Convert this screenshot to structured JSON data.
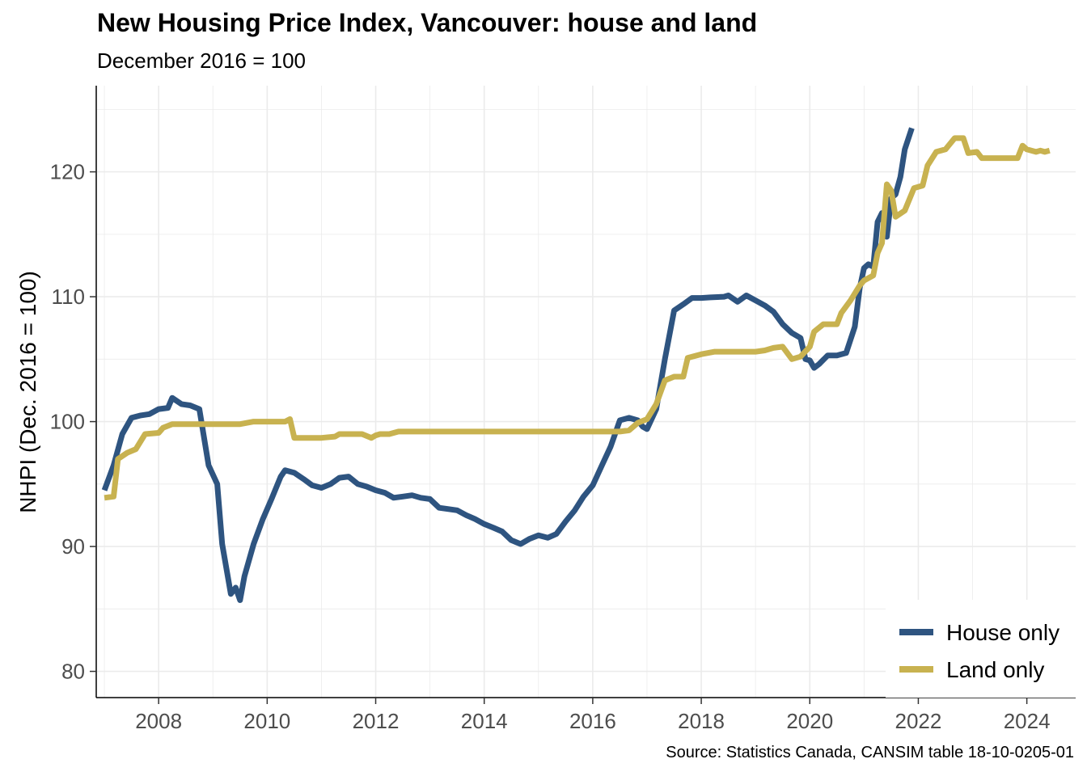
{
  "chart_data": {
    "type": "line",
    "title": "New Housing Price Index, Vancouver: house and land",
    "subtitle": "December 2016 = 100",
    "ylabel": "NHPI (Dec. 2016 = 100)",
    "xlabel": "",
    "caption": "Source: Statistics Canada, CANSIM table 18-10-0205-01",
    "x_ticks": [
      2008,
      2010,
      2012,
      2014,
      2016,
      2018,
      2020,
      2022,
      2024
    ],
    "y_ticks": [
      80,
      90,
      100,
      110,
      120
    ],
    "xlim": [
      2006.85,
      2024.9
    ],
    "ylim": [
      77.9,
      126.9
    ],
    "grid": true,
    "legend_position": "bottom-right",
    "series": [
      {
        "name": "House only",
        "color": "#2E5480",
        "points": [
          [
            2007.0,
            94.5
          ],
          [
            2007.17,
            96.5
          ],
          [
            2007.33,
            99.0
          ],
          [
            2007.5,
            100.3
          ],
          [
            2007.67,
            100.5
          ],
          [
            2007.83,
            100.6
          ],
          [
            2008.0,
            101.0
          ],
          [
            2008.17,
            101.1
          ],
          [
            2008.25,
            101.9
          ],
          [
            2008.42,
            101.4
          ],
          [
            2008.58,
            101.3
          ],
          [
            2008.75,
            101.0
          ],
          [
            2008.92,
            96.5
          ],
          [
            2009.08,
            95.0
          ],
          [
            2009.17,
            90.2
          ],
          [
            2009.33,
            86.2
          ],
          [
            2009.42,
            86.7
          ],
          [
            2009.5,
            85.7
          ],
          [
            2009.58,
            87.6
          ],
          [
            2009.75,
            90.2
          ],
          [
            2009.92,
            92.2
          ],
          [
            2010.08,
            93.8
          ],
          [
            2010.25,
            95.6
          ],
          [
            2010.33,
            96.1
          ],
          [
            2010.5,
            95.9
          ],
          [
            2010.67,
            95.4
          ],
          [
            2010.83,
            94.9
          ],
          [
            2011.0,
            94.7
          ],
          [
            2011.17,
            95.0
          ],
          [
            2011.33,
            95.5
          ],
          [
            2011.5,
            95.6
          ],
          [
            2011.67,
            95.0
          ],
          [
            2011.83,
            94.8
          ],
          [
            2012.0,
            94.5
          ],
          [
            2012.17,
            94.3
          ],
          [
            2012.33,
            93.9
          ],
          [
            2012.5,
            94.0
          ],
          [
            2012.67,
            94.1
          ],
          [
            2012.83,
            93.9
          ],
          [
            2013.0,
            93.8
          ],
          [
            2013.17,
            93.1
          ],
          [
            2013.33,
            93.0
          ],
          [
            2013.5,
            92.9
          ],
          [
            2013.67,
            92.5
          ],
          [
            2013.83,
            92.2
          ],
          [
            2014.0,
            91.8
          ],
          [
            2014.17,
            91.5
          ],
          [
            2014.33,
            91.2
          ],
          [
            2014.5,
            90.5
          ],
          [
            2014.67,
            90.2
          ],
          [
            2014.83,
            90.6
          ],
          [
            2015.0,
            90.9
          ],
          [
            2015.17,
            90.7
          ],
          [
            2015.33,
            91.0
          ],
          [
            2015.5,
            92.0
          ],
          [
            2015.67,
            92.9
          ],
          [
            2015.83,
            94.0
          ],
          [
            2016.0,
            94.9
          ],
          [
            2016.17,
            96.5
          ],
          [
            2016.33,
            98.0
          ],
          [
            2016.5,
            100.1
          ],
          [
            2016.67,
            100.3
          ],
          [
            2016.83,
            100.1
          ],
          [
            2016.92,
            99.6
          ],
          [
            2017.0,
            99.4
          ],
          [
            2017.17,
            101.0
          ],
          [
            2017.33,
            105.0
          ],
          [
            2017.5,
            108.9
          ],
          [
            2017.67,
            109.4
          ],
          [
            2017.83,
            109.9
          ],
          [
            2018.0,
            109.9
          ],
          [
            2018.17,
            109.95
          ],
          [
            2018.42,
            110.0
          ],
          [
            2018.5,
            110.1
          ],
          [
            2018.67,
            109.6
          ],
          [
            2018.83,
            110.1
          ],
          [
            2019.0,
            109.7
          ],
          [
            2019.17,
            109.3
          ],
          [
            2019.33,
            108.8
          ],
          [
            2019.5,
            107.8
          ],
          [
            2019.67,
            107.1
          ],
          [
            2019.83,
            106.7
          ],
          [
            2019.92,
            105.0
          ],
          [
            2020.0,
            104.9
          ],
          [
            2020.08,
            104.3
          ],
          [
            2020.17,
            104.6
          ],
          [
            2020.33,
            105.3
          ],
          [
            2020.5,
            105.3
          ],
          [
            2020.67,
            105.5
          ],
          [
            2020.83,
            107.6
          ],
          [
            2020.92,
            110.7
          ],
          [
            2021.0,
            112.3
          ],
          [
            2021.08,
            112.6
          ],
          [
            2021.17,
            112.4
          ],
          [
            2021.25,
            116.0
          ],
          [
            2021.33,
            116.7
          ],
          [
            2021.42,
            114.8
          ],
          [
            2021.5,
            117.9
          ],
          [
            2021.58,
            118.2
          ],
          [
            2021.67,
            119.6
          ],
          [
            2021.75,
            121.8
          ],
          [
            2021.88,
            123.5
          ]
        ]
      },
      {
        "name": "Land only",
        "color": "#C8B250",
        "points": [
          [
            2007.0,
            93.9
          ],
          [
            2007.17,
            94.0
          ],
          [
            2007.25,
            97.0
          ],
          [
            2007.42,
            97.5
          ],
          [
            2007.58,
            97.8
          ],
          [
            2007.75,
            99.0
          ],
          [
            2008.0,
            99.1
          ],
          [
            2008.08,
            99.5
          ],
          [
            2008.25,
            99.8
          ],
          [
            2008.5,
            99.8
          ],
          [
            2009.0,
            99.8
          ],
          [
            2009.5,
            99.8
          ],
          [
            2009.75,
            100.0
          ],
          [
            2010.0,
            100.0
          ],
          [
            2010.33,
            100.0
          ],
          [
            2010.42,
            100.2
          ],
          [
            2010.5,
            98.7
          ],
          [
            2010.75,
            98.7
          ],
          [
            2011.0,
            98.7
          ],
          [
            2011.25,
            98.8
          ],
          [
            2011.33,
            99.0
          ],
          [
            2011.5,
            99.0
          ],
          [
            2011.75,
            99.0
          ],
          [
            2011.92,
            98.7
          ],
          [
            2012.0,
            98.9
          ],
          [
            2012.08,
            99.0
          ],
          [
            2012.25,
            99.0
          ],
          [
            2012.42,
            99.2
          ],
          [
            2013.0,
            99.2
          ],
          [
            2014.0,
            99.2
          ],
          [
            2015.0,
            99.2
          ],
          [
            2016.0,
            99.2
          ],
          [
            2016.5,
            99.2
          ],
          [
            2016.67,
            99.3
          ],
          [
            2016.83,
            99.9
          ],
          [
            2017.0,
            100.2
          ],
          [
            2017.17,
            101.4
          ],
          [
            2017.33,
            103.3
          ],
          [
            2017.5,
            103.6
          ],
          [
            2017.67,
            103.6
          ],
          [
            2017.75,
            105.1
          ],
          [
            2018.0,
            105.4
          ],
          [
            2018.25,
            105.6
          ],
          [
            2018.5,
            105.6
          ],
          [
            2019.0,
            105.6
          ],
          [
            2019.17,
            105.7
          ],
          [
            2019.33,
            105.9
          ],
          [
            2019.5,
            106.0
          ],
          [
            2019.67,
            105.0
          ],
          [
            2019.83,
            105.2
          ],
          [
            2020.0,
            106.0
          ],
          [
            2020.08,
            107.2
          ],
          [
            2020.25,
            107.8
          ],
          [
            2020.5,
            107.8
          ],
          [
            2020.58,
            108.7
          ],
          [
            2020.75,
            109.7
          ],
          [
            2020.92,
            110.9
          ],
          [
            2021.0,
            111.3
          ],
          [
            2021.17,
            111.7
          ],
          [
            2021.25,
            113.5
          ],
          [
            2021.33,
            114.3
          ],
          [
            2021.42,
            119.0
          ],
          [
            2021.5,
            118.5
          ],
          [
            2021.58,
            116.4
          ],
          [
            2021.75,
            116.9
          ],
          [
            2021.92,
            118.7
          ],
          [
            2022.08,
            118.9
          ],
          [
            2022.17,
            120.5
          ],
          [
            2022.33,
            121.6
          ],
          [
            2022.5,
            121.8
          ],
          [
            2022.67,
            122.7
          ],
          [
            2022.83,
            122.7
          ],
          [
            2022.92,
            121.5
          ],
          [
            2023.08,
            121.6
          ],
          [
            2023.17,
            121.1
          ],
          [
            2023.5,
            121.1
          ],
          [
            2023.83,
            121.1
          ],
          [
            2023.92,
            122.1
          ],
          [
            2024.0,
            121.8
          ],
          [
            2024.17,
            121.6
          ],
          [
            2024.25,
            121.7
          ],
          [
            2024.33,
            121.6
          ],
          [
            2024.42,
            121.7
          ]
        ]
      }
    ]
  }
}
